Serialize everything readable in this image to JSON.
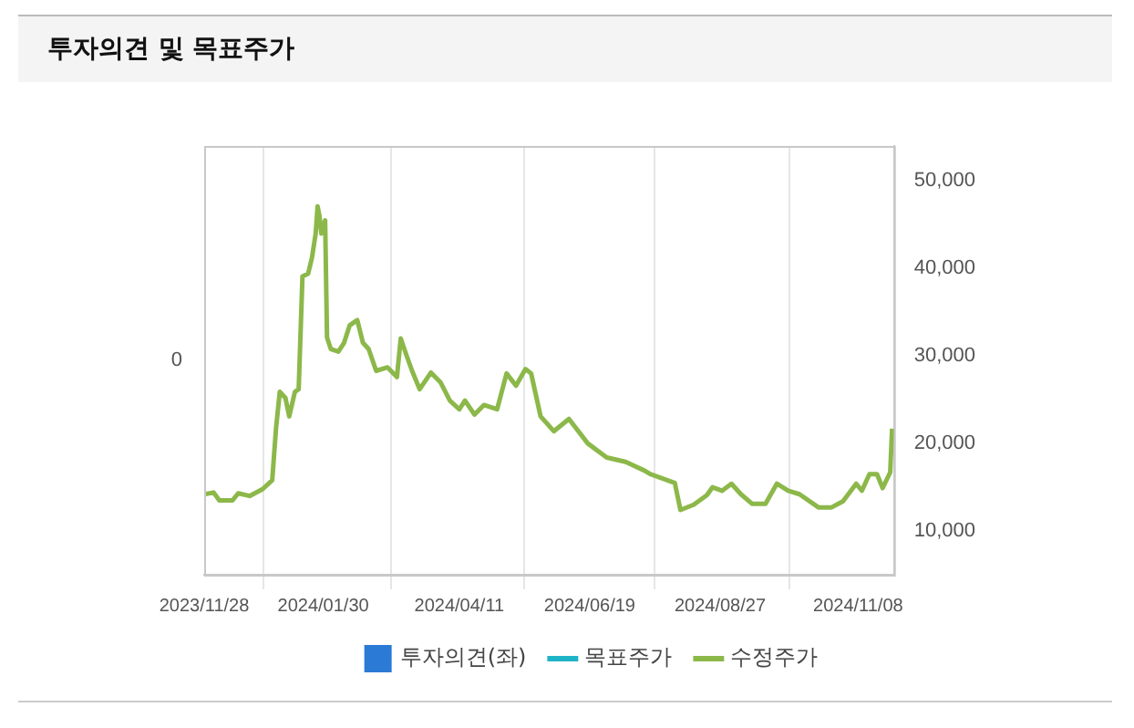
{
  "chart_data": {
    "type": "line",
    "title": "투자의견 및 목표주가",
    "xlim": [
      "2023-11-28",
      "2024-11-27"
    ],
    "xticks": [
      {
        "value": "2023-11-28",
        "label": "2023/11/28"
      },
      {
        "value": "2024-01-30",
        "label": "2024/01/30"
      },
      {
        "value": "2024-04-11",
        "label": "2024/04/11"
      },
      {
        "value": "2024-06-19",
        "label": "2024/06/19"
      },
      {
        "value": "2024-08-27",
        "label": "2024/08/27"
      },
      {
        "value": "2024-11-08",
        "label": "2024/11/08"
      }
    ],
    "annotations": [
      "0"
    ],
    "y2lim": [
      5000,
      54000
    ],
    "y2ticks": [
      {
        "value": 10000,
        "label": "10,000"
      },
      {
        "value": 20000,
        "label": "20,000"
      },
      {
        "value": 30000,
        "label": "30,000"
      },
      {
        "value": 40000,
        "label": "40,000"
      },
      {
        "value": 50000,
        "label": "50,000"
      }
    ],
    "grid": "x",
    "legend": "bottom",
    "marker": "none",
    "line_style": "solid",
    "series": [
      {
        "name": "투자의견(좌)",
        "type": "bar",
        "color": "#2a7ad6"
      },
      {
        "name": "목표주가",
        "type": "line",
        "color": "#1fb3c8",
        "axis": "y2"
      },
      {
        "name": "수정주가",
        "color": "#8cb84a",
        "axis": "y2",
        "x": [
          "2023-11-28",
          "2023-12-03",
          "2023-12-06",
          "2023-12-13",
          "2023-12-16",
          "2023-12-22",
          "2023-12-29",
          "2024-01-03",
          "2024-01-05",
          "2024-01-07",
          "2024-01-10",
          "2024-01-12",
          "2024-01-15",
          "2024-01-17",
          "2024-01-19",
          "2024-01-22",
          "2024-01-24",
          "2024-01-26",
          "2024-01-27",
          "2024-01-28",
          "2024-01-29",
          "2024-01-31",
          "2024-02-01",
          "2024-02-03",
          "2024-02-07",
          "2024-02-10",
          "2024-02-13",
          "2024-02-17",
          "2024-02-20",
          "2024-02-23",
          "2024-02-27",
          "2024-03-04",
          "2024-03-09",
          "2024-03-11",
          "2024-03-14",
          "2024-03-17",
          "2024-03-21",
          "2024-03-27",
          "2024-04-01",
          "2024-04-06",
          "2024-04-11",
          "2024-04-14",
          "2024-04-19",
          "2024-04-24",
          "2024-05-01",
          "2024-05-06",
          "2024-05-11",
          "2024-05-16",
          "2024-05-19",
          "2024-05-24",
          "2024-05-31",
          "2024-06-08",
          "2024-06-18",
          "2024-06-28",
          "2024-07-08",
          "2024-07-18",
          "2024-07-21",
          "2024-08-03",
          "2024-08-06",
          "2024-08-13",
          "2024-08-20",
          "2024-08-23",
          "2024-08-28",
          "2024-09-02",
          "2024-09-07",
          "2024-09-13",
          "2024-09-20",
          "2024-09-26",
          "2024-10-02",
          "2024-10-08",
          "2024-10-18",
          "2024-10-25",
          "2024-10-31",
          "2024-11-07",
          "2024-11-10",
          "2024-11-14",
          "2024-11-18",
          "2024-11-21",
          "2024-11-25",
          "2024-11-26"
        ],
        "values": [
          14200,
          14400,
          13500,
          13500,
          14300,
          14000,
          14800,
          15800,
          21700,
          25900,
          25200,
          23100,
          25900,
          26200,
          39100,
          39400,
          41200,
          44000,
          47100,
          46000,
          44000,
          45500,
          32100,
          30800,
          30500,
          31500,
          33500,
          34100,
          31500,
          30800,
          28300,
          28700,
          27600,
          32000,
          30100,
          28300,
          26200,
          28100,
          27000,
          24900,
          23900,
          24900,
          23300,
          24400,
          23900,
          28000,
          26600,
          28500,
          28000,
          23100,
          21400,
          22800,
          20000,
          18400,
          17900,
          16900,
          16500,
          15500,
          12400,
          13000,
          14100,
          15000,
          14600,
          15400,
          14200,
          13100,
          13100,
          15400,
          14600,
          14200,
          12700,
          12700,
          13400,
          15400,
          14600,
          16500,
          16500,
          14900,
          16700,
          21700
        ]
      }
    ]
  }
}
